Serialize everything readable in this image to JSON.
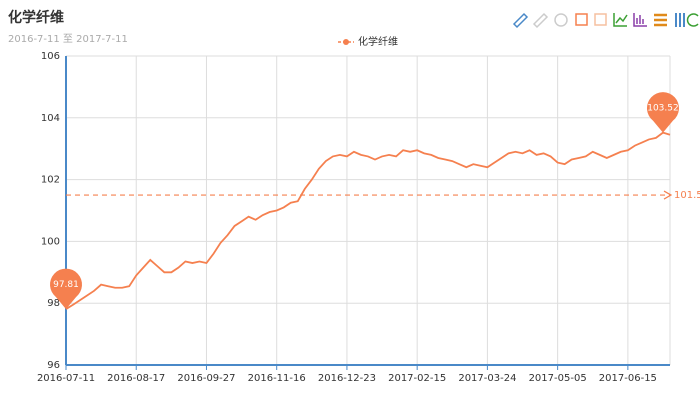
{
  "chart_data": {
    "type": "line",
    "title": "化学纤维",
    "subtitle": "2016-7-11 至 2017-7-11",
    "categories": [
      "2016-07-11",
      null,
      null,
      null,
      null,
      null,
      null,
      null,
      null,
      null,
      "2016-08-17",
      null,
      null,
      null,
      null,
      null,
      null,
      null,
      null,
      null,
      "2016-09-27",
      null,
      null,
      null,
      null,
      null,
      null,
      null,
      null,
      null,
      "2016-11-16",
      null,
      null,
      null,
      null,
      null,
      null,
      null,
      null,
      null,
      "2016-12-23",
      null,
      null,
      null,
      null,
      null,
      null,
      null,
      null,
      null,
      "2017-02-15",
      null,
      null,
      null,
      null,
      null,
      null,
      null,
      null,
      null,
      "2017-03-24",
      null,
      null,
      null,
      null,
      null,
      null,
      null,
      null,
      null,
      "2017-05-05",
      null,
      null,
      null,
      null,
      null,
      null,
      null,
      null,
      null,
      "2017-06-15",
      null,
      null,
      null,
      null,
      null,
      null
    ],
    "series": [
      {
        "name": "化学纤维",
        "color": "#f5804f",
        "values": [
          97.81,
          97.95,
          98.1,
          98.25,
          98.4,
          98.6,
          98.55,
          98.5,
          98.5,
          98.55,
          98.9,
          99.15,
          99.4,
          99.2,
          99.0,
          99.0,
          99.15,
          99.35,
          99.3,
          99.35,
          99.3,
          99.6,
          99.95,
          100.2,
          100.5,
          100.65,
          100.8,
          100.7,
          100.85,
          100.95,
          101.0,
          101.1,
          101.25,
          101.3,
          101.7,
          102.0,
          102.35,
          102.6,
          102.75,
          102.8,
          102.75,
          102.9,
          102.8,
          102.75,
          102.65,
          102.75,
          102.8,
          102.75,
          102.95,
          102.9,
          102.95,
          102.85,
          102.8,
          102.7,
          102.65,
          102.6,
          102.5,
          102.4,
          102.5,
          102.45,
          102.4,
          102.55,
          102.7,
          102.85,
          102.9,
          102.85,
          102.95,
          102.8,
          102.85,
          102.75,
          102.55,
          102.5,
          102.65,
          102.7,
          102.75,
          102.9,
          102.8,
          102.7,
          102.8,
          102.9,
          102.95,
          103.1,
          103.2,
          103.3,
          103.35,
          103.52,
          103.45
        ]
      }
    ],
    "mark_line": {
      "value": 101.5
    },
    "mark_points": [
      0,
      85
    ],
    "ylim": [
      96,
      106
    ],
    "yticks": [
      96,
      98,
      100,
      102,
      104,
      106
    ],
    "grid": true
  }
}
